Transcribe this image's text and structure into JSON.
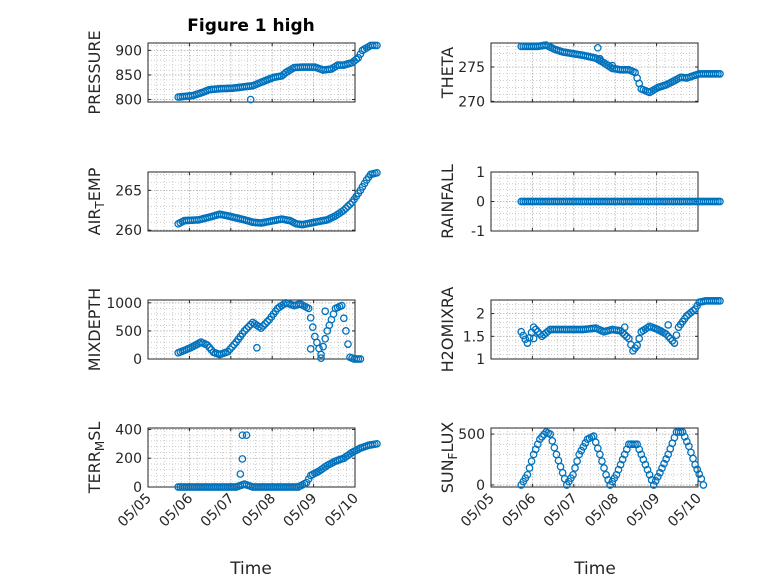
{
  "title": "Figure 1 high",
  "xlabel": "Time",
  "colors": {
    "marker": "#0072BD",
    "axis": "#262626",
    "grid": "#b0b0b0"
  },
  "chart_data": [
    {
      "type": "scatter",
      "ylabel": "PRESSURE",
      "ylabel_sub": "",
      "xlim": [
        0,
        5
      ],
      "ylim": [
        795,
        915
      ],
      "yticks": [
        800,
        850,
        900
      ],
      "x_tick_labels": [
        "05/05",
        "05/06",
        "05/07",
        "05/08",
        "05/09",
        "05/10"
      ],
      "show_x_tick_labels": false,
      "keypoints": [
        [
          0.0,
          805
        ],
        [
          0.35,
          808
        ],
        [
          0.6,
          815
        ],
        [
          0.75,
          820
        ],
        [
          1.0,
          822
        ],
        [
          1.3,
          823
        ],
        [
          1.5,
          825
        ],
        [
          1.8,
          828
        ],
        [
          2.0,
          835
        ],
        [
          2.3,
          845
        ],
        [
          2.5,
          848
        ],
        [
          2.6,
          855
        ],
        [
          2.8,
          865
        ],
        [
          3.0,
          866
        ],
        [
          3.3,
          866
        ],
        [
          3.5,
          860
        ],
        [
          3.7,
          862
        ],
        [
          3.85,
          870
        ],
        [
          4.0,
          870
        ],
        [
          4.2,
          875
        ],
        [
          4.35,
          885
        ],
        [
          4.45,
          900
        ],
        [
          4.55,
          905
        ],
        [
          4.65,
          910
        ],
        [
          4.8,
          910
        ]
      ],
      "outliers": [
        [
          1.75,
          800
        ]
      ]
    },
    {
      "type": "scatter",
      "ylabel": "THETA",
      "ylabel_sub": "",
      "xlim": [
        0,
        5
      ],
      "ylim": [
        269.9,
        278.5
      ],
      "yticks": [
        270,
        275
      ],
      "x_tick_labels": [
        "05/05",
        "05/06",
        "05/07",
        "05/08",
        "05/09",
        "05/10"
      ],
      "show_x_tick_labels": false,
      "keypoints": [
        [
          0.0,
          278.0
        ],
        [
          0.4,
          278.0
        ],
        [
          0.6,
          278.2
        ],
        [
          0.8,
          277.6
        ],
        [
          1.0,
          277.2
        ],
        [
          1.5,
          276.7
        ],
        [
          1.8,
          276.3
        ],
        [
          2.0,
          275.6
        ],
        [
          2.2,
          274.8
        ],
        [
          2.4,
          274.6
        ],
        [
          2.6,
          274.6
        ],
        [
          2.75,
          274.2
        ],
        [
          2.9,
          271.8
        ],
        [
          3.1,
          271.3
        ],
        [
          3.3,
          272.0
        ],
        [
          3.5,
          272.4
        ],
        [
          3.7,
          273.0
        ],
        [
          3.85,
          273.5
        ],
        [
          4.0,
          273.4
        ],
        [
          4.3,
          274.0
        ],
        [
          4.5,
          274.0
        ],
        [
          4.8,
          274.0
        ]
      ],
      "outliers": [
        [
          1.85,
          277.8
        ],
        [
          1.9,
          276.2
        ],
        [
          2.2,
          275.2
        ]
      ]
    },
    {
      "type": "scatter",
      "ylabel": "AIR",
      "ylabel_sub": "TEMP",
      "xlim": [
        0,
        5
      ],
      "ylim": [
        259.9,
        267.3
      ],
      "yticks": [
        260,
        265
      ],
      "x_tick_labels": [
        "05/05",
        "05/06",
        "05/07",
        "05/08",
        "05/09",
        "05/10"
      ],
      "show_x_tick_labels": false,
      "keypoints": [
        [
          0.0,
          260.8
        ],
        [
          0.15,
          261.2
        ],
        [
          0.5,
          261.3
        ],
        [
          0.8,
          261.7
        ],
        [
          1.0,
          262.0
        ],
        [
          1.2,
          261.8
        ],
        [
          1.6,
          261.3
        ],
        [
          1.8,
          261.0
        ],
        [
          2.0,
          260.9
        ],
        [
          2.2,
          261.1
        ],
        [
          2.5,
          261.4
        ],
        [
          2.7,
          261.2
        ],
        [
          2.85,
          260.8
        ],
        [
          3.0,
          260.7
        ],
        [
          3.3,
          261.0
        ],
        [
          3.6,
          261.3
        ],
        [
          3.8,
          261.8
        ],
        [
          4.0,
          262.5
        ],
        [
          4.2,
          263.5
        ],
        [
          4.4,
          265.0
        ],
        [
          4.55,
          266.3
        ],
        [
          4.65,
          267.0
        ],
        [
          4.8,
          267.2
        ]
      ],
      "outliers": []
    },
    {
      "type": "scatter",
      "ylabel": "RAINFALL",
      "ylabel_sub": "",
      "xlim": [
        0,
        5
      ],
      "ylim": [
        -1,
        1
      ],
      "yticks": [
        -1,
        0,
        1
      ],
      "x_tick_labels": [
        "05/05",
        "05/06",
        "05/07",
        "05/08",
        "05/09",
        "05/10"
      ],
      "show_x_tick_labels": false,
      "keypoints": [
        [
          0.0,
          0
        ],
        [
          4.8,
          0
        ]
      ],
      "outliers": []
    },
    {
      "type": "scatter",
      "ylabel": "MIXDEPTH",
      "ylabel_sub": "",
      "xlim": [
        0,
        5
      ],
      "ylim": [
        0,
        1050
      ],
      "yticks": [
        0,
        500,
        1000
      ],
      "x_tick_labels": [
        "05/05",
        "05/06",
        "05/07",
        "05/08",
        "05/09",
        "05/10"
      ],
      "show_x_tick_labels": false,
      "keypoints": [
        [
          0.0,
          110
        ],
        [
          0.3,
          200
        ],
        [
          0.55,
          300
        ],
        [
          0.7,
          250
        ],
        [
          0.85,
          120
        ],
        [
          1.0,
          80
        ],
        [
          1.2,
          130
        ],
        [
          1.4,
          300
        ],
        [
          1.6,
          500
        ],
        [
          1.8,
          650
        ],
        [
          2.0,
          550
        ],
        [
          2.2,
          700
        ],
        [
          2.4,
          900
        ],
        [
          2.6,
          1000
        ],
        [
          2.8,
          950
        ],
        [
          2.95,
          980
        ],
        [
          3.15,
          900
        ],
        [
          3.3,
          400
        ],
        [
          3.45,
          80
        ],
        [
          3.6,
          500
        ],
        [
          3.8,
          900
        ],
        [
          3.95,
          950
        ],
        [
          4.05,
          500
        ],
        [
          4.15,
          30
        ],
        [
          4.25,
          0
        ],
        [
          4.4,
          0
        ]
      ],
      "outliers": [
        [
          1.9,
          200
        ],
        [
          3.2,
          180
        ],
        [
          3.45,
          15
        ],
        [
          3.55,
          850
        ]
      ]
    },
    {
      "type": "scatter",
      "ylabel": "H2OMIXRA",
      "ylabel_sub": "",
      "xlim": [
        0,
        5
      ],
      "ylim": [
        1,
        2.3
      ],
      "yticks": [
        1,
        1.5,
        2
      ],
      "x_tick_labels": [
        "05/05",
        "05/06",
        "05/07",
        "05/08",
        "05/09",
        "05/10"
      ],
      "show_x_tick_labels": false,
      "keypoints": [
        [
          0.0,
          1.6
        ],
        [
          0.15,
          1.35
        ],
        [
          0.3,
          1.7
        ],
        [
          0.5,
          1.5
        ],
        [
          0.7,
          1.65
        ],
        [
          1.0,
          1.65
        ],
        [
          1.5,
          1.65
        ],
        [
          1.8,
          1.68
        ],
        [
          2.0,
          1.6
        ],
        [
          2.2,
          1.65
        ],
        [
          2.4,
          1.62
        ],
        [
          2.6,
          1.45
        ],
        [
          2.7,
          1.18
        ],
        [
          2.8,
          1.3
        ],
        [
          2.9,
          1.6
        ],
        [
          3.1,
          1.72
        ],
        [
          3.3,
          1.65
        ],
        [
          3.5,
          1.55
        ],
        [
          3.6,
          1.45
        ],
        [
          3.7,
          1.35
        ],
        [
          3.8,
          1.7
        ],
        [
          4.0,
          1.95
        ],
        [
          4.2,
          2.1
        ],
        [
          4.3,
          2.25
        ],
        [
          4.45,
          2.28
        ],
        [
          4.8,
          2.28
        ]
      ],
      "outliers": [
        [
          0.3,
          1.45
        ],
        [
          2.5,
          1.7
        ],
        [
          3.55,
          1.75
        ]
      ]
    },
    {
      "type": "scatter",
      "ylabel": "TERR",
      "ylabel_sub": "MSL",
      "xlim": [
        0,
        5
      ],
      "ylim": [
        0,
        410
      ],
      "yticks": [
        0,
        200,
        400
      ],
      "x_tick_labels": [
        "05/05",
        "05/06",
        "05/07",
        "05/08",
        "05/09",
        "05/10"
      ],
      "show_x_tick_labels": true,
      "keypoints": [
        [
          0.0,
          0
        ],
        [
          1.4,
          0
        ],
        [
          1.6,
          20
        ],
        [
          1.7,
          10
        ],
        [
          1.8,
          0
        ],
        [
          2.6,
          0
        ],
        [
          2.9,
          0
        ],
        [
          3.1,
          30
        ],
        [
          3.2,
          80
        ],
        [
          3.4,
          110
        ],
        [
          3.6,
          150
        ],
        [
          3.8,
          180
        ],
        [
          4.0,
          200
        ],
        [
          4.2,
          240
        ],
        [
          4.4,
          270
        ],
        [
          4.6,
          290
        ],
        [
          4.8,
          300
        ]
      ],
      "outliers": [
        [
          1.5,
          90
        ],
        [
          1.55,
          195
        ],
        [
          1.55,
          360
        ],
        [
          1.65,
          360
        ]
      ]
    },
    {
      "type": "scatter",
      "ylabel": "SUN",
      "ylabel_sub": "FLUX",
      "xlim": [
        0,
        5
      ],
      "ylim": [
        -20,
        560
      ],
      "yticks": [
        0,
        500
      ],
      "x_tick_labels": [
        "05/05",
        "05/06",
        "05/07",
        "05/08",
        "05/09",
        "05/10"
      ],
      "show_x_tick_labels": true,
      "keypoints": [
        [
          0.0,
          0
        ],
        [
          0.15,
          100
        ],
        [
          0.3,
          300
        ],
        [
          0.45,
          450
        ],
        [
          0.6,
          520
        ],
        [
          0.7,
          500
        ],
        [
          0.85,
          300
        ],
        [
          1.0,
          120
        ],
        [
          1.1,
          0
        ],
        [
          1.25,
          100
        ],
        [
          1.4,
          300
        ],
        [
          1.6,
          450
        ],
        [
          1.75,
          480
        ],
        [
          1.9,
          300
        ],
        [
          2.05,
          100
        ],
        [
          2.15,
          0
        ],
        [
          2.3,
          100
        ],
        [
          2.45,
          250
        ],
        [
          2.6,
          400
        ],
        [
          2.8,
          400
        ],
        [
          2.95,
          250
        ],
        [
          3.1,
          100
        ],
        [
          3.2,
          0
        ],
        [
          3.35,
          120
        ],
        [
          3.55,
          300
        ],
        [
          3.75,
          520
        ],
        [
          3.9,
          520
        ],
        [
          4.05,
          380
        ],
        [
          4.2,
          200
        ],
        [
          4.35,
          60
        ],
        [
          4.4,
          0
        ]
      ],
      "outliers": []
    }
  ]
}
